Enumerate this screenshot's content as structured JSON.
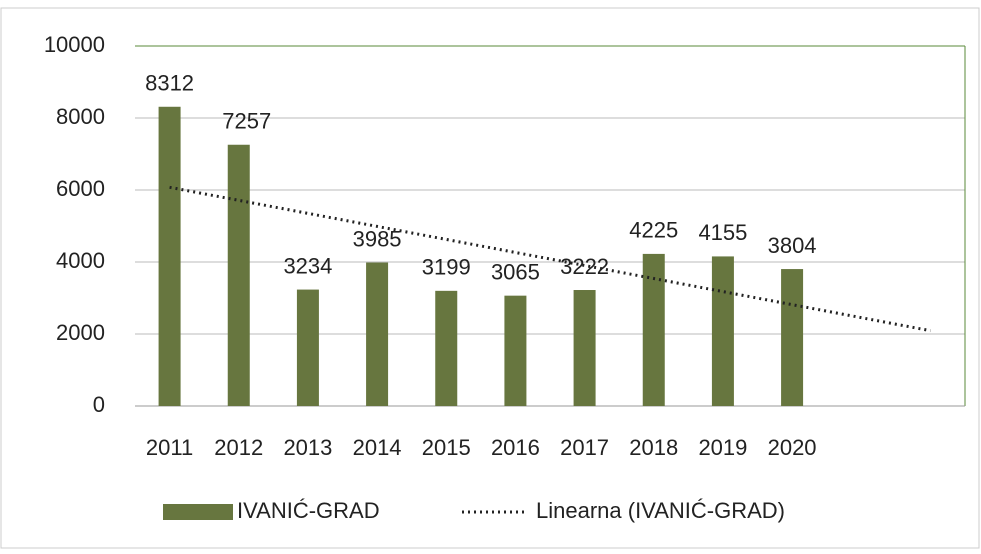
{
  "chart_data": {
    "type": "bar",
    "categories": [
      "2011",
      "2012",
      "2013",
      "2014",
      "2015",
      "2016",
      "2017",
      "2018",
      "2019",
      "2020",
      null,
      null
    ],
    "series": [
      {
        "name": "IVANIĆ-GRAD",
        "color": "#67763f",
        "values": [
          8312,
          7257,
          3234,
          3985,
          3199,
          3065,
          3222,
          4225,
          4155,
          3804,
          null,
          null
        ]
      },
      {
        "name": "Linearna (IVANIĆ-GRAD)",
        "type": "line",
        "style": "dotted",
        "color": "#222222",
        "values": [
          6075,
          5713,
          5351,
          4989,
          4627,
          4265,
          3903,
          3541,
          3178,
          2816,
          2454,
          2092
        ]
      }
    ],
    "ylim": [
      0,
      10000
    ],
    "yticks": [
      0,
      2000,
      4000,
      6000,
      8000,
      10000
    ],
    "grid": true,
    "legend": "bottom"
  }
}
